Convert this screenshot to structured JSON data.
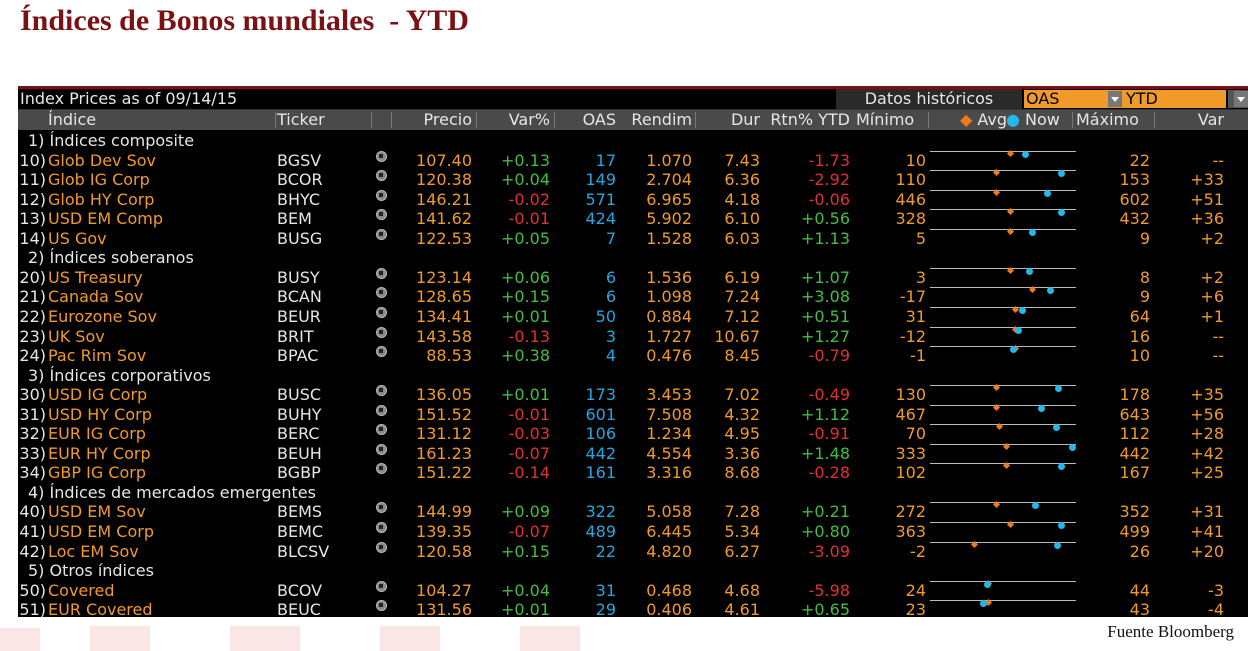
{
  "slide": {
    "title": "Índices de Bonos mundiales  - YTD",
    "source": "Fuente Bloomberg"
  },
  "colors": {
    "title": "#7a1114",
    "name": "#f09a2a",
    "oas": "#22a8e0",
    "positive": "#3fbf3f",
    "negative": "#e03030",
    "avg_marker": "#f07a1a",
    "now_marker": "#22b8e8"
  },
  "terminal": {
    "as_of": "Index Prices as of 09/14/15",
    "historical_label": "Datos históricos",
    "measure_select": "OAS",
    "period_select": "YTD",
    "headers": {
      "index": "Índice",
      "ticker": "Ticker",
      "price": "Precio",
      "var_pct": "Var%",
      "oas": "OAS",
      "yield": "Rendim",
      "dur": "Dur",
      "rtn_ytd": "Rtn% YTD",
      "min": "Mínimo",
      "avg": "Avg",
      "now": "Now",
      "max": "Máximo",
      "var": "Var"
    },
    "rows": [
      {
        "type": "section",
        "label": "1) Índices composite"
      },
      {
        "type": "item",
        "num": "10)",
        "name": "Glob Dev Sov",
        "ticker": "BGSV",
        "price": "107.40",
        "var_pct": "+0.13",
        "oas": "17",
        "yield": "1.070",
        "dur": "7.43",
        "rtn": "-1.73",
        "min": "10",
        "max": "22",
        "var": "--",
        "avg_pos": 0.55,
        "now_pos": 0.65
      },
      {
        "type": "item",
        "num": "11)",
        "name": "Glob IG Corp",
        "ticker": "BCOR",
        "price": "120.38",
        "var_pct": "+0.04",
        "oas": "149",
        "yield": "2.704",
        "dur": "6.36",
        "rtn": "-2.92",
        "min": "110",
        "max": "153",
        "var": "+33",
        "avg_pos": 0.45,
        "now_pos": 0.9
      },
      {
        "type": "item",
        "num": "12)",
        "name": "Glob HY Corp",
        "ticker": "BHYC",
        "price": "146.21",
        "var_pct": "-0.02",
        "oas": "571",
        "yield": "6.965",
        "dur": "4.18",
        "rtn": "-0.06",
        "min": "446",
        "max": "602",
        "var": "+51",
        "avg_pos": 0.45,
        "now_pos": 0.8
      },
      {
        "type": "item",
        "num": "13)",
        "name": "USD EM Comp",
        "ticker": "BEM",
        "price": "141.62",
        "var_pct": "-0.01",
        "oas": "424",
        "yield": "5.902",
        "dur": "6.10",
        "rtn": "+0.56",
        "min": "328",
        "max": "432",
        "var": "+36",
        "avg_pos": 0.55,
        "now_pos": 0.9
      },
      {
        "type": "item",
        "num": "14)",
        "name": "US Gov",
        "ticker": "BUSG",
        "price": "122.53",
        "var_pct": "+0.05",
        "oas": "7",
        "yield": "1.528",
        "dur": "6.03",
        "rtn": "+1.13",
        "min": "5",
        "max": "9",
        "var": "+2",
        "avg_pos": 0.55,
        "now_pos": 0.7
      },
      {
        "type": "section",
        "label": "2) Índices soberanos"
      },
      {
        "type": "item",
        "num": "20)",
        "name": "US Treasury",
        "ticker": "BUSY",
        "price": "123.14",
        "var_pct": "+0.06",
        "oas": "6",
        "yield": "1.536",
        "dur": "6.19",
        "rtn": "+1.07",
        "min": "3",
        "max": "8",
        "var": "+2",
        "avg_pos": 0.55,
        "now_pos": 0.68
      },
      {
        "type": "item",
        "num": "21)",
        "name": "Canada Sov",
        "ticker": "BCAN",
        "price": "128.65",
        "var_pct": "+0.15",
        "oas": "6",
        "yield": "1.098",
        "dur": "7.24",
        "rtn": "+3.08",
        "min": "-17",
        "max": "9",
        "var": "+6",
        "avg_pos": 0.7,
        "now_pos": 0.82
      },
      {
        "type": "item",
        "num": "22)",
        "name": "Eurozone Sov",
        "ticker": "BEUR",
        "price": "134.41",
        "var_pct": "+0.01",
        "oas": "50",
        "yield": "0.884",
        "dur": "7.12",
        "rtn": "+0.51",
        "min": "31",
        "max": "64",
        "var": "+1",
        "avg_pos": 0.58,
        "now_pos": 0.63
      },
      {
        "type": "item",
        "num": "23)",
        "name": "UK Sov",
        "ticker": "BRIT",
        "price": "143.58",
        "var_pct": "-0.13",
        "oas": "3",
        "yield": "1.727",
        "dur": "10.67",
        "rtn": "+1.27",
        "min": "-12",
        "max": "16",
        "var": "--",
        "avg_pos": 0.58,
        "now_pos": 0.6
      },
      {
        "type": "item",
        "num": "24)",
        "name": "Pac Rim Sov",
        "ticker": "BPAC",
        "price": "88.53",
        "var_pct": "+0.38",
        "oas": "4",
        "yield": "0.476",
        "dur": "8.45",
        "rtn": "-0.79",
        "min": "-1",
        "max": "10",
        "var": "--",
        "avg_pos": 0.58,
        "now_pos": 0.57
      },
      {
        "type": "section",
        "label": "3) Índices corporativos"
      },
      {
        "type": "item",
        "num": "30)",
        "name": "USD IG Corp",
        "ticker": "BUSC",
        "price": "136.05",
        "var_pct": "+0.01",
        "oas": "173",
        "yield": "3.453",
        "dur": "7.02",
        "rtn": "-0.49",
        "min": "130",
        "max": "178",
        "var": "+35",
        "avg_pos": 0.45,
        "now_pos": 0.88
      },
      {
        "type": "item",
        "num": "31)",
        "name": "USD HY Corp",
        "ticker": "BUHY",
        "price": "151.52",
        "var_pct": "-0.01",
        "oas": "601",
        "yield": "7.508",
        "dur": "4.32",
        "rtn": "+1.12",
        "min": "467",
        "max": "643",
        "var": "+56",
        "avg_pos": 0.45,
        "now_pos": 0.76
      },
      {
        "type": "item",
        "num": "32)",
        "name": "EUR IG Corp",
        "ticker": "BERC",
        "price": "131.12",
        "var_pct": "-0.03",
        "oas": "106",
        "yield": "1.234",
        "dur": "4.95",
        "rtn": "-0.91",
        "min": "70",
        "max": "112",
        "var": "+28",
        "avg_pos": 0.47,
        "now_pos": 0.86
      },
      {
        "type": "item",
        "num": "33)",
        "name": "EUR HY Corp",
        "ticker": "BEUH",
        "price": "161.23",
        "var_pct": "-0.07",
        "oas": "442",
        "yield": "4.554",
        "dur": "3.36",
        "rtn": "+1.48",
        "min": "333",
        "max": "442",
        "var": "+42",
        "avg_pos": 0.52,
        "now_pos": 0.97
      },
      {
        "type": "item",
        "num": "34)",
        "name": "GBP IG Corp",
        "ticker": "BGBP",
        "price": "151.22",
        "var_pct": "-0.14",
        "oas": "161",
        "yield": "3.316",
        "dur": "8.68",
        "rtn": "-0.28",
        "min": "102",
        "max": "167",
        "var": "+25",
        "avg_pos": 0.52,
        "now_pos": 0.9
      },
      {
        "type": "section",
        "label": "4) Índices de mercados emergentes"
      },
      {
        "type": "item",
        "num": "40)",
        "name": "USD EM Sov",
        "ticker": "BEMS",
        "price": "144.99",
        "var_pct": "+0.09",
        "oas": "322",
        "yield": "5.058",
        "dur": "7.28",
        "rtn": "+0.21",
        "min": "272",
        "max": "352",
        "var": "+31",
        "avg_pos": 0.45,
        "now_pos": 0.72
      },
      {
        "type": "item",
        "num": "41)",
        "name": "USD EM Corp",
        "ticker": "BEMC",
        "price": "139.35",
        "var_pct": "-0.07",
        "oas": "489",
        "yield": "6.445",
        "dur": "5.34",
        "rtn": "+0.80",
        "min": "363",
        "max": "499",
        "var": "+41",
        "avg_pos": 0.55,
        "now_pos": 0.9
      },
      {
        "type": "item",
        "num": "42)",
        "name": "Loc EM Sov",
        "ticker": "BLCSV",
        "price": "120.58",
        "var_pct": "+0.15",
        "oas": "22",
        "yield": "4.820",
        "dur": "6.27",
        "rtn": "-3.09",
        "min": "-2",
        "max": "26",
        "var": "+20",
        "avg_pos": 0.3,
        "now_pos": 0.87
      },
      {
        "type": "section",
        "label": "5) Otros índices"
      },
      {
        "type": "item",
        "num": "50)",
        "name": "Covered",
        "ticker": "BCOV",
        "price": "104.27",
        "var_pct": "+0.04",
        "oas": "31",
        "yield": "0.468",
        "dur": "4.68",
        "rtn": "-5.98",
        "min": "24",
        "max": "44",
        "var": "-3",
        "avg_pos": 0.4,
        "now_pos": 0.39
      },
      {
        "type": "item",
        "num": "51)",
        "name": "EUR Covered",
        "ticker": "BEUC",
        "price": "131.56",
        "var_pct": "+0.01",
        "oas": "29",
        "yield": "0.406",
        "dur": "4.61",
        "rtn": "+0.65",
        "min": "23",
        "max": "43",
        "var": "-4",
        "avg_pos": 0.4,
        "now_pos": 0.36
      }
    ]
  }
}
